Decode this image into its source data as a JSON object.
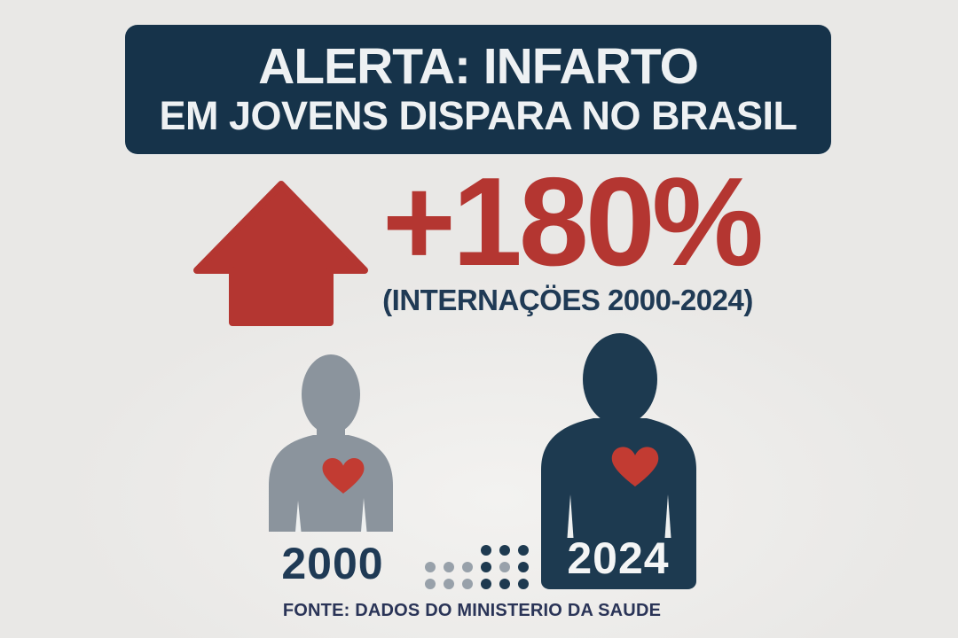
{
  "header": {
    "line1": "ALERTA: INFARTO",
    "line2": "EM JOVENS DISPARA NO BRASIL"
  },
  "stat": {
    "value": "+180%",
    "subtitle": "(INTERNAÇÖES 2000-2024)"
  },
  "figures": {
    "left": {
      "year": "2000"
    },
    "right": {
      "year": "2024"
    }
  },
  "dots": {
    "rows": [
      "...ddd",
      "gggdgd",
      "gggddd"
    ],
    "colors": {
      "g": "#98a1aa",
      "d": "#1e3a50"
    }
  },
  "footer": {
    "text": "FONTE: DADOS DO MINISTERIO DA SAUDE"
  },
  "colors": {
    "background": "#e9e8e7",
    "banner": "#16334a",
    "accent_red": "#b43631",
    "heart_red": "#c23b32",
    "navy_text": "#1f3a55",
    "gray_figure": "#8b949d",
    "dark_figure": "#1d3a50",
    "white": "#eef0f0"
  },
  "chart_data": {
    "type": "pictogram",
    "title": "ALERTA: INFARTO EM JOVENS DISPARA NO BRASIL",
    "metric": "Internações por infarto em jovens no Brasil",
    "change_percent": 180,
    "change_label": "+180%",
    "period_label": "(INTERNAÇÖES 2000-2024)",
    "categories": [
      "2000",
      "2024"
    ],
    "relative_figure_sizes": [
      1,
      1.45
    ],
    "legend_position": "none",
    "source": "FONTE: DADOS DO MINISTERIO DA SAUDE"
  }
}
